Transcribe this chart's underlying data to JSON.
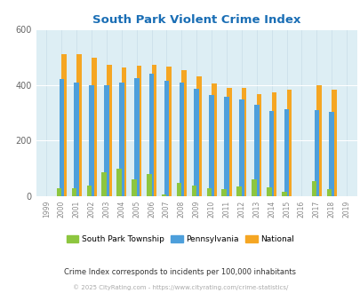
{
  "title": "South Park Violent Crime Index",
  "years": [
    1999,
    2000,
    2001,
    2002,
    2003,
    2004,
    2005,
    2006,
    2007,
    2008,
    2009,
    2010,
    2011,
    2012,
    2013,
    2014,
    2015,
    2016,
    2017,
    2018,
    2019
  ],
  "south_park": [
    0,
    30,
    30,
    40,
    85,
    100,
    60,
    80,
    8,
    48,
    38,
    28,
    25,
    35,
    60,
    32,
    17,
    0,
    55,
    27,
    0
  ],
  "pennsylvania": [
    0,
    420,
    408,
    400,
    398,
    410,
    425,
    440,
    415,
    408,
    385,
    365,
    358,
    348,
    328,
    308,
    313,
    0,
    310,
    304,
    0
  ],
  "national": [
    0,
    510,
    510,
    498,
    472,
    462,
    470,
    474,
    466,
    454,
    430,
    405,
    390,
    390,
    368,
    374,
    384,
    0,
    398,
    384,
    0
  ],
  "colors": {
    "south_park": "#8dc63f",
    "pennsylvania": "#4d9fdb",
    "national": "#f5a623",
    "background": "#ddeef4",
    "title": "#1a6eb5"
  },
  "ylim": [
    0,
    600
  ],
  "yticks": [
    0,
    200,
    400,
    600
  ],
  "subtitle": "Crime Index corresponds to incidents per 100,000 inhabitants",
  "copyright": "© 2025 CityRating.com - https://www.cityrating.com/crime-statistics/",
  "legend_labels": [
    "South Park Township",
    "Pennsylvania",
    "National"
  ],
  "bar_width": 0.33
}
